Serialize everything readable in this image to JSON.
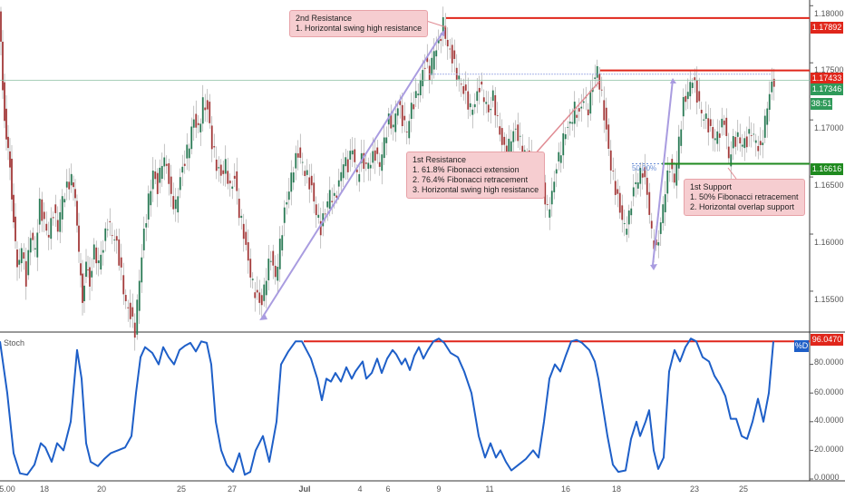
{
  "chart_data": [
    {
      "type": "candlestick",
      "instrument_price_axis": [
        1.155,
        1.16,
        1.165,
        1.17,
        1.175,
        1.18
      ],
      "ylim": [
        1.1515,
        1.1805
      ],
      "tick_labels": [
        "1.15500",
        "1.16000",
        "1.16500",
        "1.17000",
        "1.17500",
        "1.18000"
      ],
      "x_tick_labels": [
        "5.00",
        "18",
        "20",
        "25",
        "27",
        "Jul",
        "4",
        "6",
        "9",
        "11",
        "16",
        "18",
        "23",
        "25"
      ],
      "levels": {
        "second_resistance": {
          "value": 1.17892,
          "label": "1.17892"
        },
        "first_resistance": {
          "value": 1.17433,
          "label": "1.17433"
        },
        "first_support": {
          "value": 1.16616,
          "label": "1.16616"
        },
        "current_price": {
          "value": 1.17346,
          "label": "1.17346"
        },
        "countdown": {
          "label": "38:51"
        }
      },
      "fib_label": "50.00%",
      "annotations": {
        "second_resistance": "2nd Resistance\n1. Horizontal swing high resistance",
        "first_resistance": "1st Resistance\n1. 61.8% Fibonacci extension\n2. 76.4% Fibonacci retracement\n3. Horizontal swing high resistance",
        "first_support": "1st Support\n1. 50% Fibonacci retracement\n2. Horizontal overlap support"
      },
      "price_path": [
        [
          0,
          1.1795
        ],
        [
          4,
          1.173
        ],
        [
          8,
          1.168
        ],
        [
          12,
          1.166
        ],
        [
          16,
          1.161
        ],
        [
          20,
          1.157
        ],
        [
          25,
          1.159
        ],
        [
          30,
          1.156
        ],
        [
          35,
          1.16
        ],
        [
          40,
          1.1585
        ],
        [
          45,
          1.1625
        ],
        [
          50,
          1.161
        ],
        [
          55,
          1.16
        ],
        [
          60,
          1.162
        ],
        [
          65,
          1.1605
        ],
        [
          70,
          1.163
        ],
        [
          75,
          1.164
        ],
        [
          80,
          1.165
        ],
        [
          84,
          1.1635
        ],
        [
          88,
          1.158
        ],
        [
          92,
          1.1545
        ],
        [
          96,
          1.157
        ],
        [
          100,
          1.156
        ],
        [
          105,
          1.1585
        ],
        [
          110,
          1.1575
        ],
        [
          115,
          1.159
        ],
        [
          120,
          1.161
        ],
        [
          125,
          1.16
        ],
        [
          130,
          1.159
        ],
        [
          135,
          1.1565
        ],
        [
          140,
          1.154
        ],
        [
          145,
          1.153
        ],
        [
          150,
          1.1515
        ],
        [
          155,
          1.156
        ],
        [
          160,
          1.16
        ],
        [
          165,
          1.163
        ],
        [
          170,
          1.1655
        ],
        [
          175,
          1.164
        ],
        [
          180,
          1.1665
        ],
        [
          185,
          1.166
        ],
        [
          190,
          1.163
        ],
        [
          195,
          1.1625
        ],
        [
          200,
          1.165
        ],
        [
          205,
          1.1665
        ],
        [
          210,
          1.168
        ],
        [
          215,
          1.17
        ],
        [
          220,
          1.169
        ],
        [
          225,
          1.1715
        ],
        [
          230,
          1.171
        ],
        [
          235,
          1.168
        ],
        [
          240,
          1.166
        ],
        [
          245,
          1.165
        ],
        [
          250,
          1.166
        ],
        [
          255,
          1.164
        ],
        [
          260,
          1.165
        ],
        [
          265,
          1.162
        ],
        [
          270,
          1.16
        ],
        [
          275,
          1.1575
        ],
        [
          280,
          1.1555
        ],
        [
          285,
          1.1545
        ],
        [
          290,
          1.154
        ],
        [
          295,
          1.1565
        ],
        [
          300,
          1.158
        ],
        [
          305,
          1.156
        ],
        [
          310,
          1.159
        ],
        [
          315,
          1.162
        ],
        [
          320,
          1.164
        ],
        [
          325,
          1.166
        ],
        [
          330,
          1.167
        ],
        [
          335,
          1.166
        ],
        [
          340,
          1.165
        ],
        [
          345,
          1.164
        ],
        [
          350,
          1.162
        ],
        [
          355,
          1.1605
        ],
        [
          360,
          1.162
        ],
        [
          365,
          1.1635
        ],
        [
          370,
          1.163
        ],
        [
          375,
          1.1645
        ],
        [
          380,
          1.1665
        ],
        [
          385,
          1.166
        ],
        [
          390,
          1.1675
        ],
        [
          395,
          1.165
        ],
        [
          400,
          1.1665
        ],
        [
          405,
          1.166
        ],
        [
          410,
          1.1665
        ],
        [
          415,
          1.167
        ],
        [
          420,
          1.166
        ],
        [
          425,
          1.168
        ],
        [
          430,
          1.17
        ],
        [
          435,
          1.1695
        ],
        [
          440,
          1.1715
        ],
        [
          445,
          1.17
        ],
        [
          450,
          1.169
        ],
        [
          455,
          1.171
        ],
        [
          460,
          1.172
        ],
        [
          465,
          1.1735
        ],
        [
          470,
          1.175
        ],
        [
          475,
          1.174
        ],
        [
          480,
          1.176
        ],
        [
          485,
          1.1765
        ],
        [
          490,
          1.1785
        ],
        [
          495,
          1.1765
        ],
        [
          500,
          1.1755
        ],
        [
          505,
          1.174
        ],
        [
          510,
          1.173
        ],
        [
          515,
          1.172
        ],
        [
          520,
          1.171
        ],
        [
          525,
          1.1715
        ],
        [
          530,
          1.173
        ],
        [
          535,
          1.172
        ],
        [
          540,
          1.1705
        ],
        [
          545,
          1.172
        ],
        [
          550,
          1.17
        ],
        [
          555,
          1.168
        ],
        [
          560,
          1.167
        ],
        [
          565,
          1.1685
        ],
        [
          570,
          1.169
        ],
        [
          575,
          1.168
        ],
        [
          580,
          1.167
        ],
        [
          585,
          1.1665
        ],
        [
          590,
          1.166
        ],
        [
          595,
          1.165
        ],
        [
          600,
          1.164
        ],
        [
          605,
          1.162
        ],
        [
          610,
          1.1635
        ],
        [
          615,
          1.166
        ],
        [
          620,
          1.1675
        ],
        [
          625,
          1.169
        ],
        [
          630,
          1.1695
        ],
        [
          635,
          1.171
        ],
        [
          640,
          1.1705
        ],
        [
          645,
          1.172
        ],
        [
          650,
          1.171
        ],
        [
          655,
          1.173
        ],
        [
          660,
          1.1743
        ],
        [
          665,
          1.172
        ],
        [
          670,
          1.169
        ],
        [
          675,
          1.166
        ],
        [
          680,
          1.164
        ],
        [
          685,
          1.162
        ],
        [
          690,
          1.1605
        ],
        [
          695,
          1.1615
        ],
        [
          700,
          1.164
        ],
        [
          705,
          1.165
        ],
        [
          710,
          1.1655
        ],
        [
          715,
          1.1635
        ],
        [
          720,
          1.16
        ],
        [
          725,
          1.1585
        ],
        [
          730,
          1.161
        ],
        [
          735,
          1.164
        ],
        [
          740,
          1.166
        ],
        [
          745,
          1.1645
        ],
        [
          750,
          1.168
        ],
        [
          755,
          1.1715
        ],
        [
          760,
          1.1725
        ],
        [
          765,
          1.1738
        ],
        [
          770,
          1.172
        ],
        [
          775,
          1.1705
        ],
        [
          780,
          1.17
        ],
        [
          785,
          1.169
        ],
        [
          790,
          1.1685
        ],
        [
          795,
          1.169
        ],
        [
          800,
          1.17
        ],
        [
          805,
          1.1665
        ],
        [
          810,
          1.168
        ],
        [
          815,
          1.1685
        ],
        [
          820,
          1.168
        ],
        [
          825,
          1.1682
        ],
        [
          830,
          1.169
        ],
        [
          835,
          1.168
        ],
        [
          840,
          1.1672
        ],
        [
          845,
          1.17
        ],
        [
          850,
          1.1725
        ],
        [
          855,
          1.1735
        ]
      ]
    },
    {
      "type": "line",
      "title": "Stoch",
      "ylim": [
        0,
        100
      ],
      "tick_labels": [
        "0.0000",
        "20.0000",
        "40.0000",
        "60.0000",
        "80.0000"
      ],
      "series": [
        {
          "name": "%D",
          "current_label": "96.0470"
        }
      ],
      "level": {
        "value": 96.047
      },
      "values": [
        [
          0,
          96
        ],
        [
          8,
          60
        ],
        [
          15,
          18
        ],
        [
          22,
          4
        ],
        [
          30,
          3
        ],
        [
          38,
          10
        ],
        [
          45,
          25
        ],
        [
          50,
          22
        ],
        [
          57,
          12
        ],
        [
          63,
          25
        ],
        [
          70,
          20
        ],
        [
          78,
          40
        ],
        [
          85,
          90
        ],
        [
          90,
          70
        ],
        [
          95,
          25
        ],
        [
          100,
          12
        ],
        [
          108,
          9
        ],
        [
          115,
          14
        ],
        [
          122,
          18
        ],
        [
          130,
          20
        ],
        [
          138,
          22
        ],
        [
          145,
          30
        ],
        [
          150,
          60
        ],
        [
          155,
          85
        ],
        [
          160,
          92
        ],
        [
          168,
          88
        ],
        [
          175,
          80
        ],
        [
          180,
          92
        ],
        [
          186,
          85
        ],
        [
          192,
          80
        ],
        [
          198,
          90
        ],
        [
          204,
          93
        ],
        [
          210,
          95
        ],
        [
          216,
          89
        ],
        [
          222,
          96
        ],
        [
          228,
          95
        ],
        [
          233,
          80
        ],
        [
          238,
          40
        ],
        [
          244,
          20
        ],
        [
          250,
          10
        ],
        [
          257,
          5
        ],
        [
          264,
          18
        ],
        [
          270,
          3
        ],
        [
          276,
          5
        ],
        [
          282,
          20
        ],
        [
          290,
          30
        ],
        [
          297,
          12
        ],
        [
          305,
          40
        ],
        [
          310,
          80
        ],
        [
          318,
          89
        ],
        [
          326,
          96
        ],
        [
          333,
          96
        ],
        [
          338,
          90
        ],
        [
          343,
          84
        ],
        [
          350,
          70
        ],
        [
          355,
          55
        ],
        [
          360,
          70
        ],
        [
          365,
          68
        ],
        [
          370,
          74
        ],
        [
          376,
          68
        ],
        [
          382,
          78
        ],
        [
          388,
          70
        ],
        [
          392,
          75
        ],
        [
          400,
          82
        ],
        [
          404,
          70
        ],
        [
          410,
          74
        ],
        [
          416,
          84
        ],
        [
          421,
          74
        ],
        [
          427,
          84
        ],
        [
          433,
          90
        ],
        [
          437,
          87
        ],
        [
          443,
          80
        ],
        [
          447,
          84
        ],
        [
          452,
          76
        ],
        [
          457,
          86
        ],
        [
          462,
          92
        ],
        [
          467,
          84
        ],
        [
          472,
          90
        ],
        [
          478,
          96
        ],
        [
          484,
          98
        ],
        [
          490,
          95
        ],
        [
          497,
          88
        ],
        [
          505,
          85
        ],
        [
          512,
          75
        ],
        [
          520,
          60
        ],
        [
          528,
          30
        ],
        [
          535,
          15
        ],
        [
          541,
          25
        ],
        [
          547,
          15
        ],
        [
          552,
          20
        ],
        [
          558,
          12
        ],
        [
          564,
          6
        ],
        [
          572,
          10
        ],
        [
          580,
          14
        ],
        [
          588,
          20
        ],
        [
          594,
          15
        ],
        [
          600,
          40
        ],
        [
          606,
          70
        ],
        [
          612,
          80
        ],
        [
          618,
          75
        ],
        [
          624,
          86
        ],
        [
          630,
          96
        ],
        [
          636,
          97
        ],
        [
          642,
          95
        ],
        [
          650,
          90
        ],
        [
          656,
          82
        ],
        [
          660,
          70
        ],
        [
          665,
          50
        ],
        [
          670,
          30
        ],
        [
          676,
          10
        ],
        [
          682,
          5
        ],
        [
          690,
          6
        ],
        [
          696,
          28
        ],
        [
          702,
          40
        ],
        [
          706,
          30
        ],
        [
          712,
          40
        ],
        [
          716,
          48
        ],
        [
          721,
          20
        ],
        [
          726,
          7
        ],
        [
          732,
          15
        ],
        [
          738,
          75
        ],
        [
          744,
          90
        ],
        [
          750,
          82
        ],
        [
          756,
          92
        ],
        [
          762,
          98
        ],
        [
          768,
          96
        ],
        [
          775,
          85
        ],
        [
          782,
          82
        ],
        [
          788,
          72
        ],
        [
          794,
          66
        ],
        [
          800,
          58
        ],
        [
          806,
          42
        ],
        [
          812,
          42
        ],
        [
          818,
          30
        ],
        [
          824,
          28
        ],
        [
          830,
          40
        ],
        [
          836,
          56
        ],
        [
          842,
          40
        ],
        [
          848,
          60
        ],
        [
          853,
          96
        ]
      ]
    }
  ]
}
